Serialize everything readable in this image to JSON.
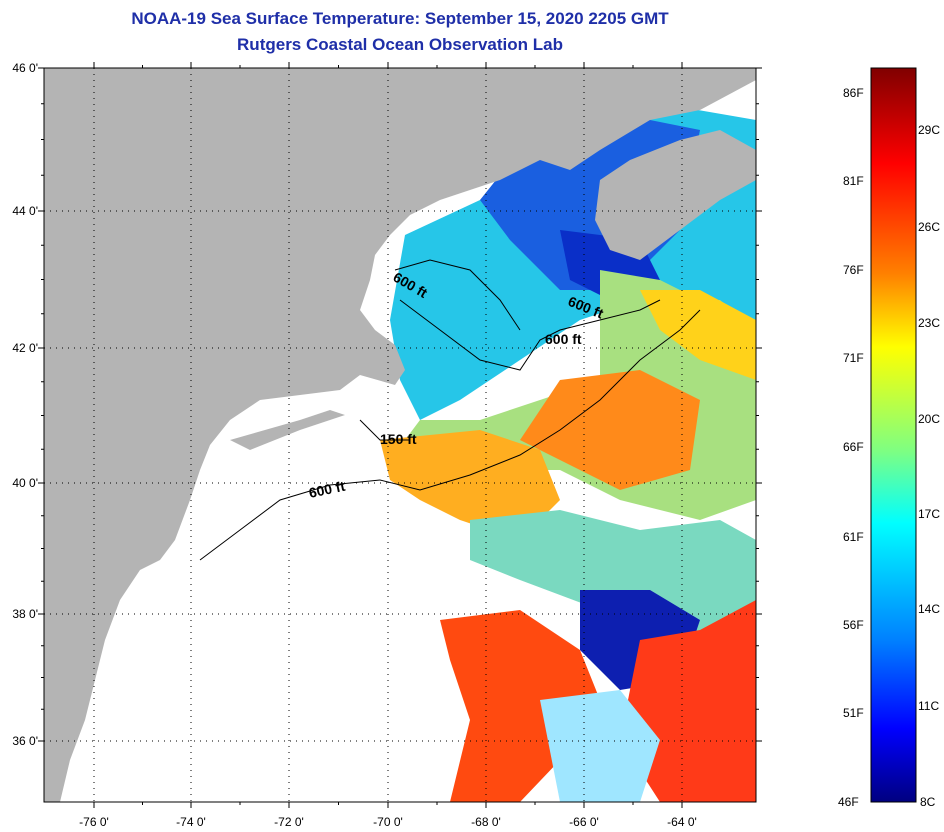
{
  "header": {
    "title": "NOAA-19 Sea Surface Temperature:  September 15, 2020 2205 GMT",
    "subtitle": "Rutgers Coastal Ocean Observation Lab"
  },
  "map": {
    "lat_labels": [
      "46 0'",
      "44 0'",
      "42 0'",
      "40 0'",
      "38 0'",
      "36 0'"
    ],
    "lon_labels": [
      "-76 0'",
      "-74 0'",
      "-72 0'",
      "-70 0'",
      "-68 0'",
      "-66 0'",
      "-64 0'"
    ],
    "contour_labels": [
      "600 ft",
      "600 ft",
      "600 ft",
      "150 ft",
      "600 ft"
    ],
    "land_color": "#b4b4b4",
    "missing_data_color": "#ffffff"
  },
  "colorbar": {
    "fahrenheit_labels": [
      "86F",
      "81F",
      "76F",
      "71F",
      "66F",
      "61F",
      "56F",
      "51F",
      "46F"
    ],
    "celsius_labels": [
      "29C",
      "26C",
      "23C",
      "20C",
      "17C",
      "14C",
      "11C",
      "8C"
    ],
    "colors": [
      "#800000",
      "#ff0000",
      "#ff8000",
      "#ffff00",
      "#80ff80",
      "#00ffff",
      "#0080ff",
      "#0000ff",
      "#000080"
    ]
  }
}
